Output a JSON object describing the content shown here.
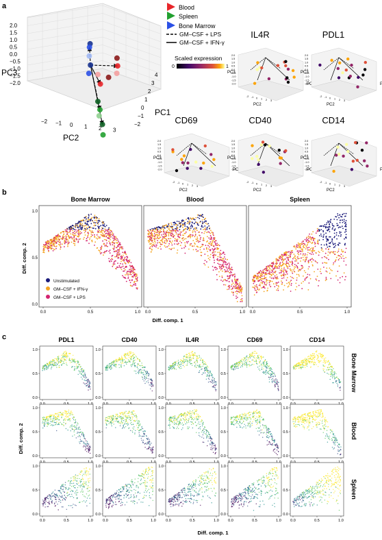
{
  "panels": {
    "a": {
      "letter": "a",
      "legend_groups": [
        {
          "label": "Blood",
          "color": "#e8262a"
        },
        {
          "label": "Spleen",
          "color": "#22a030"
        },
        {
          "label": "Bone Marrow",
          "color": "#2b50e6"
        }
      ],
      "legend_lines": [
        {
          "label": "GM–CSF + LPS",
          "style": "dashed"
        },
        {
          "label": "GM–CSF + IFN-γ",
          "style": "solid"
        }
      ],
      "colorbar": {
        "title": "Scaled expression",
        "min_label": "0",
        "max_label": "1"
      },
      "main_axes": {
        "xlabel": "PC2",
        "ylabel": "PC1",
        "zlabel": "PC3",
        "x_ticks": [
          "−2",
          "−1",
          "0",
          "1",
          "2",
          "3"
        ],
        "y_ticks": [
          "−2",
          "−1",
          "0",
          "1",
          "2",
          "3",
          "4"
        ],
        "z_ticks": [
          "−2.0",
          "−1.5",
          "−1.0",
          "−0.5",
          "0.0",
          "0.5",
          "1.0",
          "1.5",
          "2.0"
        ]
      },
      "small_plots": [
        {
          "title": "IL4R"
        },
        {
          "title": "PDL1"
        },
        {
          "title": "CD69"
        },
        {
          "title": "CD40"
        },
        {
          "title": "CD14"
        }
      ]
    },
    "b": {
      "letter": "b",
      "titles": [
        "Bone Marrow",
        "Blood",
        "Spleen"
      ],
      "xlabel": "Diff. comp. 1",
      "ylabel": "Diff. comp. 2",
      "x_ticks": [
        "0.0",
        "0.5",
        "1.0"
      ],
      "y_ticks": [
        "0.0",
        "0.5",
        "1.0"
      ],
      "legend": [
        {
          "label": "Unstimulated",
          "color": "#1a1a7a"
        },
        {
          "label": "GM–CSF + IFN-γ",
          "color": "#f5a623"
        },
        {
          "label": "GM–CSF + LPS",
          "color": "#d4246f"
        }
      ]
    },
    "c": {
      "letter": "c",
      "columns": [
        "PDL1",
        "CD40",
        "IL4R",
        "CD69",
        "CD14"
      ],
      "rows": [
        "Bone Marrow",
        "Blood",
        "Spleen"
      ],
      "xlabel": "Diff. comp. 1",
      "ylabel": "Diff. comp. 2",
      "x_ticks": [
        "0.0",
        "0.5",
        "1.0"
      ],
      "y_ticks": [
        "0.0",
        "0.5",
        "1.0"
      ]
    }
  },
  "chart_data": [
    {
      "type": "scatter",
      "panel": "a",
      "xlabel": "PC2",
      "ylabel": "PC1",
      "zlabel": "PC3",
      "xlim": [
        -2.5,
        3.5
      ],
      "ylim": [
        -2.5,
        4.5
      ],
      "zlim": [
        -2.0,
        2.0
      ],
      "series": [
        {
          "name": "Blood",
          "color": "#e8262a",
          "points": [
            [
              -1.8,
              0.5,
              1.2
            ],
            [
              -1.5,
              0.8,
              0.9
            ],
            [
              -1.2,
              1.0,
              0.6
            ],
            [
              -1.0,
              0.6,
              0.3
            ],
            [
              -0.8,
              0.2,
              -0.2
            ],
            [
              -1.3,
              -0.4,
              0.0
            ]
          ]
        },
        {
          "name": "Spleen",
          "color": "#22a030",
          "points": [
            [
              1.5,
              2.0,
              0.6
            ],
            [
              1.8,
              2.4,
              0.3
            ],
            [
              2.1,
              2.6,
              0.1
            ],
            [
              2.3,
              3.0,
              -0.3
            ],
            [
              2.6,
              3.3,
              -0.8
            ]
          ]
        },
        {
          "name": "Bone Marrow",
          "color": "#2b50e6",
          "points": [
            [
              -1.6,
              -1.2,
              1.9
            ],
            [
              -1.2,
              -0.9,
              2.0
            ],
            [
              -0.6,
              -0.4,
              1.9
            ],
            [
              0.0,
              0.2,
              1.8
            ],
            [
              0.6,
              0.6,
              1.7
            ]
          ]
        }
      ],
      "trajectories": [
        {
          "name": "GM–CSF + LPS",
          "style": "dashed"
        },
        {
          "name": "GM–CSF + IFN-γ",
          "style": "solid"
        }
      ]
    },
    {
      "type": "scatter",
      "panel": "b",
      "facets": [
        "Bone Marrow",
        "Blood",
        "Spleen"
      ],
      "xlabel": "Diff. comp. 1",
      "ylabel": "Diff. comp. 2",
      "xlim": [
        0.0,
        1.0
      ],
      "ylim": [
        0.0,
        1.0
      ],
      "series": [
        {
          "name": "Unstimulated",
          "color": "#1a1a7a"
        },
        {
          "name": "GM–CSF + IFN-γ",
          "color": "#f5a623"
        },
        {
          "name": "GM–CSF + LPS",
          "color": "#d4246f"
        }
      ],
      "shape_apex": {
        "Bone Marrow": [
          0.5,
          0.97
        ],
        "Blood": [
          0.58,
          0.98
        ],
        "Spleen": [
          0.9,
          0.98
        ]
      }
    },
    {
      "type": "scatter",
      "panel": "c",
      "xlabel": "Diff. comp. 1",
      "ylabel": "Diff. comp. 2",
      "xlim": [
        0.0,
        1.0
      ],
      "ylim": [
        0.0,
        1.0
      ],
      "columns": [
        "PDL1",
        "CD40",
        "IL4R",
        "CD69",
        "CD14"
      ],
      "rows": [
        "Bone Marrow",
        "Blood",
        "Spleen"
      ],
      "color_scale": "viridis"
    }
  ]
}
